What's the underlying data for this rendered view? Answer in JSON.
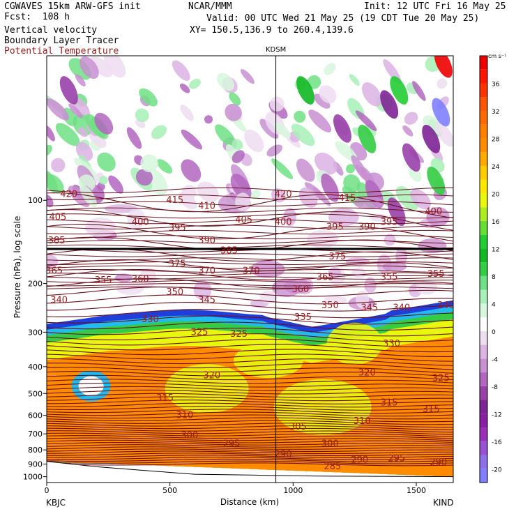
{
  "header": {
    "model": "CGWAVES 15km ARW-GFS init",
    "forecast": "Fcst:  108 h",
    "field1": "Vertical velocity",
    "field2": "Boundary Layer Tracer",
    "field3": "Potential Temperature",
    "org": "NCAR/MMM",
    "init": "Init: 12 UTC Fri 16 May 25",
    "valid": "Valid: 00 UTC Wed 21 May 25 (19 CDT Tue 20 May 25)",
    "xy": "XY= 150.5,136.9 to 260.4,139.6",
    "station_mid": "KDSM",
    "station_left": "KBJC",
    "station_right": "KIND"
  },
  "colors": {
    "theta_line": "#6b0f1a",
    "label_theta": "#9b1c1c",
    "terrain": "#ffffff"
  },
  "chart_data": {
    "type": "heatmap",
    "xlabel": "Distance (km)",
    "ylabel": "Pressure (hPa), log scale",
    "xlim": [
      0,
      1650
    ],
    "ylim_hPa": [
      1050,
      30
    ],
    "x_ticks": [
      0,
      500,
      1000,
      1500
    ],
    "y_ticks": [
      100,
      200,
      300,
      400,
      500,
      600,
      700,
      800,
      900,
      1000
    ],
    "y_tick_labels": [
      "100",
      "200",
      "300",
      "400",
      "500",
      "600",
      "700",
      "800",
      "900",
      "1000"
    ],
    "vertical_marker_km": 930,
    "colorbar": {
      "unit": "cm s⁻¹",
      "tick_labels": [
        "36",
        "32",
        "28",
        "24",
        "20",
        "16",
        "12",
        "8",
        "4",
        "0",
        "-4",
        "-8",
        "-12",
        "-16",
        "-20"
      ],
      "levels": [
        -22,
        -20,
        -18,
        -16,
        -14,
        -12,
        -10,
        -8,
        -6,
        -4,
        -2,
        0,
        2,
        4,
        6,
        8,
        10,
        12,
        14,
        16,
        18,
        20,
        22,
        24,
        26,
        28,
        30,
        32,
        34,
        36,
        38,
        40
      ],
      "colors": [
        "#7f7fff",
        "#8f6fe8",
        "#9b4fd1",
        "#9a30b8",
        "#8b1fa3",
        "#7e2496",
        "#9940a8",
        "#b266bf",
        "#c88fd1",
        "#dcb3e3",
        "#eeddf1",
        "#ffffff",
        "#d7f7dd",
        "#a8f0b6",
        "#6fe084",
        "#33cc44",
        "#11b822",
        "#22cc33",
        "#66dd33",
        "#aaee22",
        "#e8f80c",
        "#ffe800",
        "#ffcc00",
        "#ffaa00",
        "#ff8c00",
        "#ff7f00",
        "#ff6a00",
        "#ff5500",
        "#ff3300",
        "#ff1500",
        "#ee0000"
      ]
    },
    "theta_labels": [
      {
        "v": "420",
        "x": 90,
        "p": 95
      },
      {
        "v": "405",
        "x": 45,
        "p": 115
      },
      {
        "v": "385",
        "x": 40,
        "p": 140
      },
      {
        "v": "365",
        "x": 30,
        "p": 180
      },
      {
        "v": "340",
        "x": 50,
        "p": 230
      },
      {
        "v": "355",
        "x": 230,
        "p": 195
      },
      {
        "v": "360",
        "x": 380,
        "p": 193
      },
      {
        "v": "400",
        "x": 380,
        "p": 120
      },
      {
        "v": "415",
        "x": 520,
        "p": 100
      },
      {
        "v": "410",
        "x": 650,
        "p": 105
      },
      {
        "v": "395",
        "x": 530,
        "p": 126
      },
      {
        "v": "390",
        "x": 650,
        "p": 140
      },
      {
        "v": "375",
        "x": 530,
        "p": 170
      },
      {
        "v": "370",
        "x": 650,
        "p": 180
      },
      {
        "v": "370",
        "x": 830,
        "p": 180
      },
      {
        "v": "405",
        "x": 800,
        "p": 118
      },
      {
        "v": "385",
        "x": 740,
        "p": 152
      },
      {
        "v": "350",
        "x": 520,
        "p": 215
      },
      {
        "v": "345",
        "x": 650,
        "p": 230
      },
      {
        "v": "330",
        "x": 420,
        "p": 270
      },
      {
        "v": "325",
        "x": 620,
        "p": 300
      },
      {
        "v": "325",
        "x": 780,
        "p": 305
      },
      {
        "v": "320",
        "x": 670,
        "p": 430
      },
      {
        "v": "315",
        "x": 480,
        "p": 520
      },
      {
        "v": "310",
        "x": 560,
        "p": 600
      },
      {
        "v": "300",
        "x": 580,
        "p": 710
      },
      {
        "v": "295",
        "x": 750,
        "p": 760
      },
      {
        "v": "290",
        "x": 960,
        "p": 830
      },
      {
        "v": "285",
        "x": 1160,
        "p": 920
      },
      {
        "v": "290",
        "x": 1270,
        "p": 870
      },
      {
        "v": "295",
        "x": 1420,
        "p": 860
      },
      {
        "v": "290",
        "x": 1590,
        "p": 890
      },
      {
        "v": "300",
        "x": 1150,
        "p": 760
      },
      {
        "v": "305",
        "x": 1020,
        "p": 660
      },
      {
        "v": "310",
        "x": 1280,
        "p": 630
      },
      {
        "v": "315",
        "x": 1390,
        "p": 540
      },
      {
        "v": "315",
        "x": 1560,
        "p": 570
      },
      {
        "v": "325",
        "x": 1600,
        "p": 440
      },
      {
        "v": "320",
        "x": 1300,
        "p": 420
      },
      {
        "v": "330",
        "x": 1400,
        "p": 330
      },
      {
        "v": "335",
        "x": 1040,
        "p": 265
      },
      {
        "v": "340",
        "x": 1440,
        "p": 245
      },
      {
        "v": "340",
        "x": 1620,
        "p": 240
      },
      {
        "v": "345",
        "x": 1310,
        "p": 245
      },
      {
        "v": "350",
        "x": 1150,
        "p": 240
      },
      {
        "v": "360",
        "x": 1030,
        "p": 210
      },
      {
        "v": "365",
        "x": 1130,
        "p": 190
      },
      {
        "v": "355",
        "x": 1390,
        "p": 190
      },
      {
        "v": "355",
        "x": 1580,
        "p": 185
      },
      {
        "v": "375",
        "x": 1180,
        "p": 160
      },
      {
        "v": "395",
        "x": 1170,
        "p": 125
      },
      {
        "v": "390",
        "x": 1300,
        "p": 125
      },
      {
        "v": "395",
        "x": 1390,
        "p": 120
      },
      {
        "v": "400",
        "x": 1570,
        "p": 110
      },
      {
        "v": "400",
        "x": 960,
        "p": 120
      },
      {
        "v": "420",
        "x": 960,
        "p": 95
      },
      {
        "v": "415",
        "x": 1220,
        "p": 98
      }
    ]
  }
}
